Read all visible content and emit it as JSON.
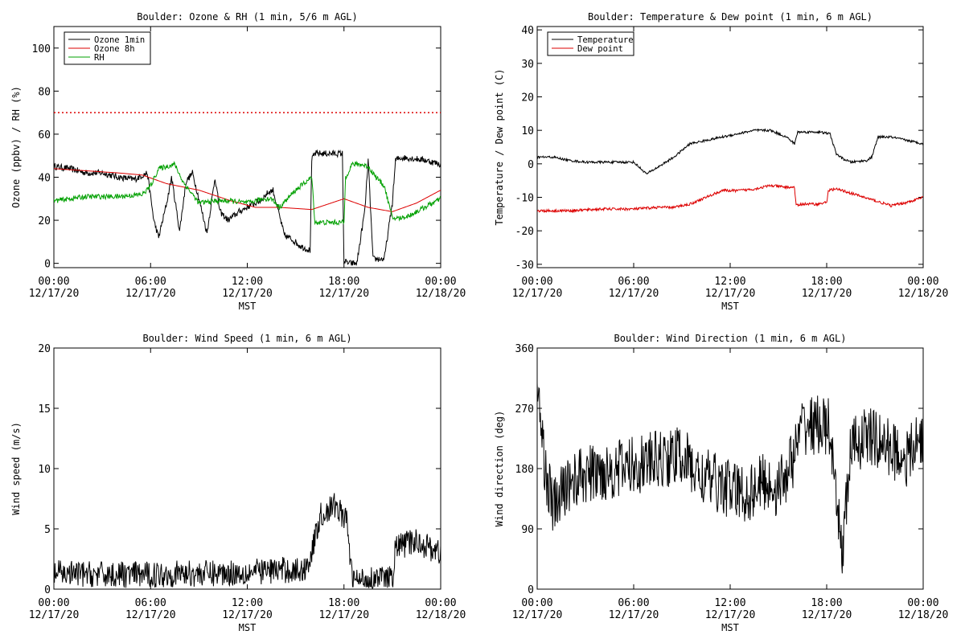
{
  "chart_data": [
    {
      "type": "line",
      "title": "Boulder: Ozone & RH (1 min, 5/6 m AGL)",
      "ylabel": "Ozone (ppbv) / RH (%)",
      "xlabel": "MST",
      "ylim": [
        -2,
        110
      ],
      "yticks": [
        0,
        20,
        40,
        60,
        80,
        100
      ],
      "xlim": [
        0,
        24
      ],
      "xticks": [
        0,
        6,
        12,
        18,
        24
      ],
      "xtick_labels": [
        [
          "00:00",
          "12/17/20"
        ],
        [
          "06:00",
          "12/17/20"
        ],
        [
          "12:00",
          "12/17/20"
        ],
        [
          "18:00",
          "12/17/20"
        ],
        [
          "00:00",
          "12/18/20"
        ]
      ],
      "legend": {
        "placement": "top-left",
        "entries": [
          {
            "name": "Ozone 1min",
            "color": "#000000"
          },
          {
            "name": "Ozone 8h",
            "color": "#dd0000"
          },
          {
            "name": "RH",
            "color": "#00a000"
          }
        ]
      },
      "reference_line": {
        "y": 70,
        "color": "#dd0000",
        "style": "dotted"
      },
      "series": [
        {
          "name": "Ozone 1min",
          "color": "#000000",
          "noise": 1.5,
          "x": [
            0,
            1,
            2,
            3,
            4,
            5,
            5.8,
            6.2,
            6.5,
            7,
            7.3,
            7.8,
            8.2,
            8.6,
            9.0,
            9.5,
            10.0,
            10.3,
            10.8,
            11.5,
            12.2,
            12.8,
            13.3,
            13.6,
            14.0,
            14.3,
            14.8,
            15.3,
            15.9,
            16.0,
            16.2,
            17.0,
            17.9,
            18.0,
            18.3,
            18.8,
            19.3,
            19.5,
            19.8,
            20.5,
            21.0,
            21.2,
            21.5,
            22.0,
            23.0,
            24
          ],
          "y": [
            45,
            44,
            42,
            42,
            40,
            39,
            42,
            20,
            12,
            28,
            40,
            15,
            38,
            42,
            30,
            14,
            40,
            24,
            20,
            24,
            27,
            29,
            33,
            34,
            22,
            13,
            11,
            8,
            6,
            48,
            51,
            51,
            51,
            1,
            0,
            0,
            25,
            48,
            2,
            2,
            28,
            48,
            49,
            49,
            48,
            46
          ]
        },
        {
          "name": "Ozone 8h",
          "color": "#dd0000",
          "noise": 0,
          "x": [
            0,
            2,
            4,
            5.5,
            7,
            9,
            11,
            12.5,
            14,
            16,
            18,
            19.5,
            21,
            22.5,
            24
          ],
          "y": [
            44,
            43,
            42,
            41,
            37,
            34,
            29,
            26,
            26,
            25,
            30,
            26,
            24,
            28,
            34
          ]
        },
        {
          "name": "RH",
          "color": "#00a000",
          "noise": 1.2,
          "x": [
            0,
            2,
            4,
            5.5,
            6.0,
            6.5,
            7.5,
            8.0,
            9.0,
            10.0,
            11.0,
            12.0,
            13.0,
            13.5,
            14.0,
            15.0,
            15.5,
            16.0,
            16.2,
            18.0,
            18.1,
            18.5,
            19.0,
            19.5,
            20.0,
            20.5,
            21.0,
            21.5,
            22.0,
            23.0,
            24
          ],
          "y": [
            29,
            31,
            31,
            32,
            36,
            44,
            46,
            38,
            28,
            29,
            29,
            28,
            30,
            30,
            26,
            34,
            37,
            40,
            19,
            19,
            40,
            46,
            46,
            45,
            40,
            36,
            21,
            21,
            22,
            26,
            30
          ]
        }
      ]
    },
    {
      "type": "line",
      "title": "Boulder: Temperature & Dew point (1 min, 6 m AGL)",
      "ylabel": "Temperature / Dew point (C)",
      "xlabel": "MST",
      "ylim": [
        -31,
        41
      ],
      "yticks": [
        -30,
        -20,
        -10,
        0,
        10,
        20,
        30,
        40
      ],
      "xlim": [
        0,
        24
      ],
      "xticks": [
        0,
        6,
        12,
        18,
        24
      ],
      "xtick_labels": [
        [
          "00:00",
          "12/17/20"
        ],
        [
          "06:00",
          "12/17/20"
        ],
        [
          "12:00",
          "12/17/20"
        ],
        [
          "18:00",
          "12/17/20"
        ],
        [
          "00:00",
          "12/18/20"
        ]
      ],
      "legend": {
        "placement": "top-left",
        "entries": [
          {
            "name": "Temperature",
            "color": "#000000"
          },
          {
            "name": "Dew point",
            "color": "#dd0000"
          }
        ]
      },
      "series": [
        {
          "name": "Temperature",
          "color": "#000000",
          "noise": 0.35,
          "x": [
            0,
            1,
            2,
            3,
            4,
            5,
            6,
            6.8,
            7.5,
            8.5,
            9.5,
            10.5,
            11.5,
            12.5,
            13.5,
            14.5,
            15.5,
            16.0,
            16.2,
            16.6,
            17.5,
            18.2,
            18.6,
            19.0,
            19.5,
            20.5,
            20.8,
            21.2,
            22.0,
            23.0,
            24
          ],
          "y": [
            2,
            2,
            1,
            0.5,
            0.5,
            0.5,
            0.5,
            -3,
            -1,
            2,
            6,
            7,
            8,
            9,
            10,
            10,
            8,
            6,
            9.5,
            9.5,
            9.5,
            9,
            3,
            1.5,
            0.5,
            1,
            2,
            8,
            8,
            7,
            6
          ]
        },
        {
          "name": "Dew point",
          "color": "#dd0000",
          "noise": 0.4,
          "x": [
            0,
            2,
            4,
            6,
            7.5,
            8.5,
            9.5,
            10.5,
            11.5,
            12.5,
            13.5,
            14.5,
            15.5,
            16.0,
            16.1,
            16.5,
            17.5,
            18.0,
            18.1,
            18.5,
            19.0,
            20.0,
            21.0,
            22.0,
            23.0,
            24
          ],
          "y": [
            -14,
            -14,
            -13.5,
            -13.5,
            -13,
            -13,
            -12,
            -10,
            -8,
            -8,
            -7.5,
            -6.5,
            -7,
            -7,
            -12.5,
            -12,
            -12,
            -11.5,
            -8,
            -7.5,
            -8,
            -9.5,
            -11,
            -12.5,
            -11.5,
            -10
          ]
        }
      ]
    },
    {
      "type": "line",
      "title": "Boulder: Wind Speed (1 min, 6 m AGL)",
      "ylabel": "Wind speed (m/s)",
      "xlabel": "MST",
      "ylim": [
        0,
        20
      ],
      "yticks": [
        0,
        5,
        10,
        15,
        20
      ],
      "xlim": [
        0,
        24
      ],
      "xticks": [
        0,
        6,
        12,
        18,
        24
      ],
      "xtick_labels": [
        [
          "00:00",
          "12/17/20"
        ],
        [
          "06:00",
          "12/17/20"
        ],
        [
          "12:00",
          "12/17/20"
        ],
        [
          "18:00",
          "12/17/20"
        ],
        [
          "00:00",
          "12/18/20"
        ]
      ],
      "series": [
        {
          "name": "",
          "color": "#000000",
          "noise": 1.1,
          "x": [
            0,
            3,
            6,
            8,
            10,
            12,
            14,
            15.5,
            16.0,
            16.5,
            17.5,
            18.2,
            18.5,
            19.0,
            20.0,
            21.0,
            21.2,
            22.5,
            24
          ],
          "y": [
            1.3,
            1.2,
            1.2,
            1.3,
            1.3,
            1.4,
            1.6,
            1.5,
            3,
            6,
            7,
            5.5,
            0.8,
            0.7,
            0.9,
            0.8,
            3.5,
            4,
            3
          ]
        }
      ]
    },
    {
      "type": "line",
      "title": "Boulder: Wind Direction (1 min, 6 m AGL)",
      "ylabel": "Wind direction (deg)",
      "xlabel": "MST",
      "ylim": [
        0,
        360
      ],
      "yticks": [
        0,
        90,
        180,
        270,
        360
      ],
      "xlim": [
        0,
        24
      ],
      "xticks": [
        0,
        6,
        12,
        18,
        24
      ],
      "xtick_labels": [
        [
          "00:00",
          "12/17/20"
        ],
        [
          "06:00",
          "12/17/20"
        ],
        [
          "12:00",
          "12/17/20"
        ],
        [
          "18:00",
          "12/17/20"
        ],
        [
          "00:00",
          "12/18/20"
        ]
      ],
      "series": [
        {
          "name": "",
          "color": "#000000",
          "noise": 45,
          "x": [
            0,
            0.5,
            1,
            2,
            3,
            5,
            7,
            9,
            10,
            12,
            13,
            14,
            15,
            16,
            16.5,
            17.5,
            18.2,
            18.5,
            19,
            19.5,
            20.5,
            22,
            23,
            24
          ],
          "y": [
            300,
            180,
            120,
            160,
            170,
            180,
            190,
            200,
            170,
            150,
            140,
            160,
            150,
            200,
            245,
            245,
            240,
            140,
            60,
            210,
            230,
            210,
            195,
            230
          ]
        }
      ]
    }
  ]
}
